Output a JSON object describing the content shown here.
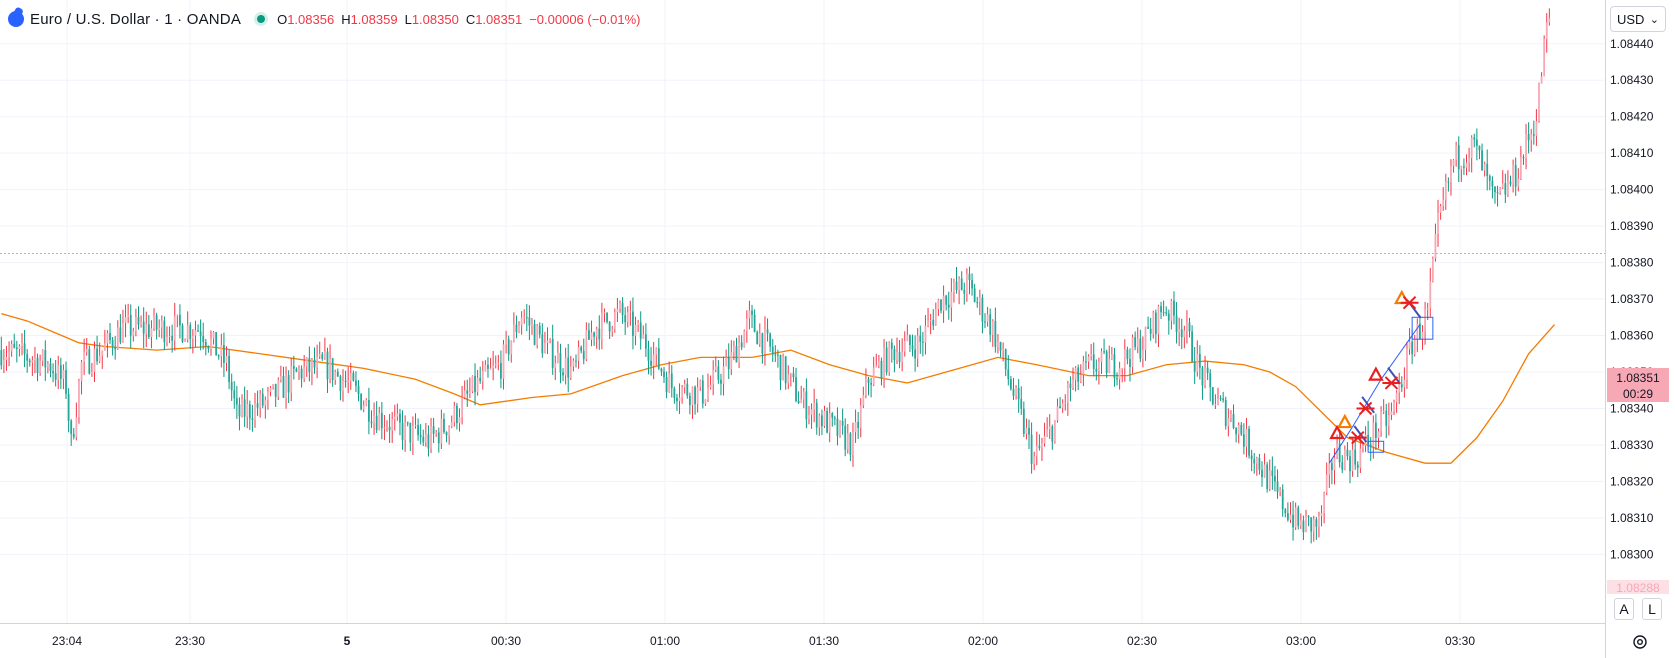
{
  "header": {
    "symbol": "Euro / U.S. Dollar · 1 · OANDA",
    "open_label": "O",
    "open": "1.08356",
    "high_label": "H",
    "high": "1.08359",
    "low_label": "L",
    "low": "1.08350",
    "close_label": "C",
    "close": "1.08351",
    "change": "−0.00006 (−0.01%)"
  },
  "currency_selector": "USD",
  "bottom_buttons": {
    "auto": "A",
    "log": "L"
  },
  "price_badge": {
    "price": "1.08351",
    "countdown": "00:29",
    "low_badge": "1.08288"
  },
  "colors": {
    "up": "#089981",
    "down": "#f23645",
    "ma": "#f57c00",
    "pattern_blue": "#2962ff",
    "triangle_orange": "#f57c00",
    "triangle_red": "#e91e1e"
  },
  "chart_data": {
    "type": "candlestick",
    "x_ticks": [
      "23:04",
      "23:30",
      "5",
      "00:30",
      "01:00",
      "01:30",
      "02:00",
      "02:30",
      "03:00",
      "03:30"
    ],
    "y_ticks": [
      "1.08300",
      "1.08310",
      "1.08320",
      "1.08330",
      "1.08340",
      "1.08350",
      "1.08360",
      "1.08370",
      "1.08380",
      "1.08390",
      "1.08400",
      "1.08410",
      "1.08420",
      "1.08430",
      "1.08440"
    ],
    "ylim": [
      1.08282,
      1.08452
    ],
    "reference_level": 1.083825,
    "ma_series": [
      [
        0,
        1.08366
      ],
      [
        10,
        1.08364
      ],
      [
        20,
        1.08361
      ],
      [
        30,
        1.08358
      ],
      [
        40,
        1.08357
      ],
      [
        60,
        1.08356
      ],
      [
        80,
        1.08357
      ],
      [
        100,
        1.08355
      ],
      [
        120,
        1.08353
      ],
      [
        140,
        1.08351
      ],
      [
        160,
        1.08348
      ],
      [
        175,
        1.08344
      ],
      [
        185,
        1.08341
      ],
      [
        195,
        1.08342
      ],
      [
        205,
        1.08343
      ],
      [
        220,
        1.08344
      ],
      [
        240,
        1.08349
      ],
      [
        255,
        1.08352
      ],
      [
        270,
        1.08354
      ],
      [
        290,
        1.08354
      ],
      [
        305,
        1.08356
      ],
      [
        320,
        1.08352
      ],
      [
        335,
        1.08349
      ],
      [
        350,
        1.08347
      ],
      [
        370,
        1.08351
      ],
      [
        385,
        1.08354
      ],
      [
        400,
        1.08352
      ],
      [
        420,
        1.08349
      ],
      [
        435,
        1.08349
      ],
      [
        450,
        1.08352
      ],
      [
        465,
        1.08353
      ],
      [
        480,
        1.08352
      ],
      [
        490,
        1.0835
      ],
      [
        500,
        1.08346
      ],
      [
        510,
        1.08339
      ],
      [
        520,
        1.08332
      ],
      [
        535,
        1.08328
      ],
      [
        550,
        1.08325
      ],
      [
        560,
        1.08325
      ],
      [
        570,
        1.08332
      ],
      [
        580,
        1.08342
      ],
      [
        590,
        1.08355
      ],
      [
        600,
        1.08363
      ]
    ],
    "annotations": {
      "triangles_orange": [
        [
          519,
          1.08336
        ],
        [
          541,
          1.0837
        ]
      ],
      "triangles_red": [
        [
          516,
          1.08333
        ],
        [
          531,
          1.08349
        ]
      ],
      "crosses_red": [
        [
          524,
          1.08332
        ],
        [
          527,
          1.0834
        ],
        [
          537,
          1.08347
        ],
        [
          544,
          1.08369
        ]
      ],
      "crosses_blue": [
        [
          525,
          1.08333
        ],
        [
          528,
          1.08341
        ],
        [
          538,
          1.08349
        ],
        [
          546,
          1.08367
        ]
      ],
      "pattern_line": [
        [
          513,
          1.08325
        ],
        [
          522,
          1.08335
        ],
        [
          533,
          1.08348
        ],
        [
          548,
          1.08363
        ]
      ],
      "boxes": [
        [
          528,
          1.08331,
          534,
          1.08328
        ],
        [
          545,
          1.08365,
          553,
          1.08359
        ]
      ]
    }
  }
}
